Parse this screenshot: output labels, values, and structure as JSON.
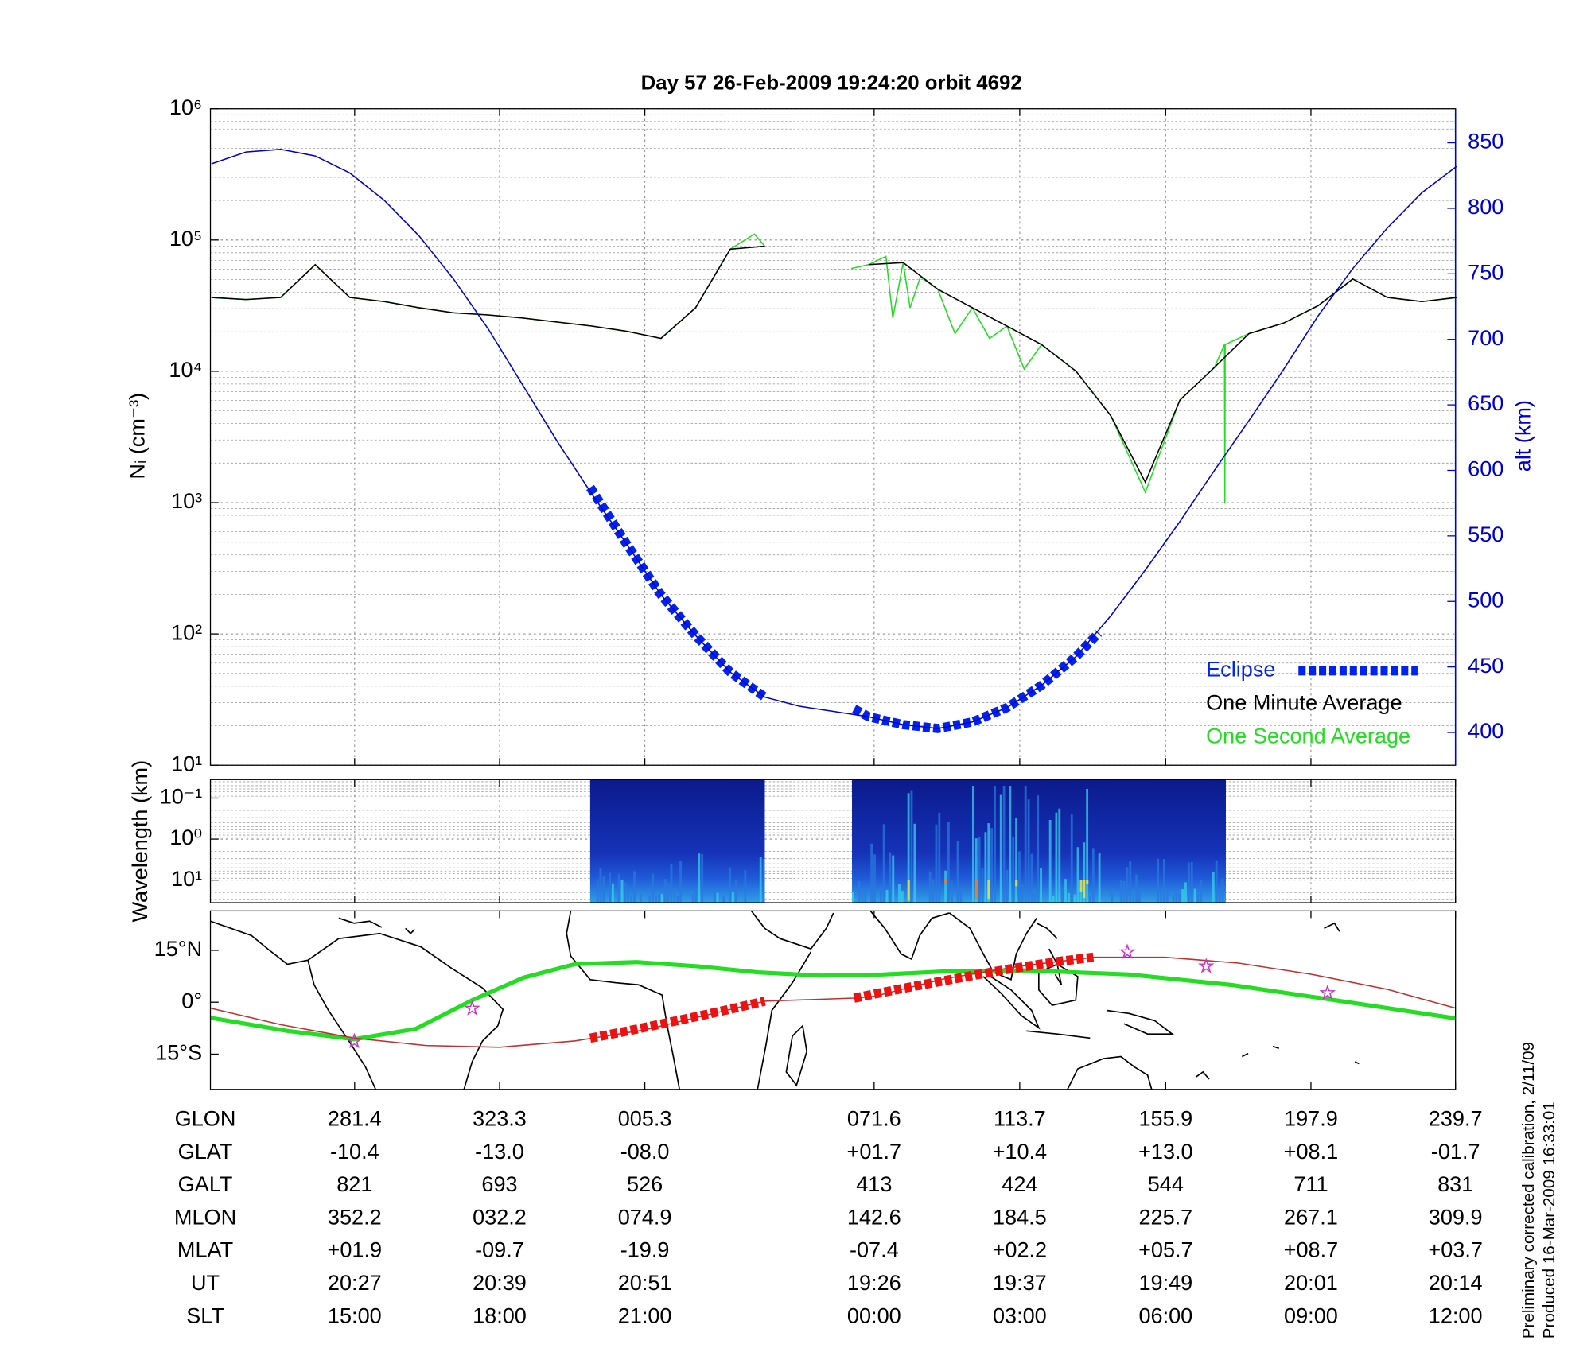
{
  "chart_data": [
    {
      "type": "line",
      "title": "Day 57  26-Feb-2009 19:24:20   orbit 4692",
      "ylabel": "Nᵢ (cm⁻³)",
      "y2label": "alt (km)",
      "log_y": true,
      "grid": true,
      "minor_grid": true,
      "legend": "lower right",
      "xlim": [
        239.7,
        599.7
      ],
      "xticks": [
        281.4,
        323.3,
        365.3,
        431.6,
        473.7,
        515.9,
        557.9,
        599.7
      ],
      "ylim": [
        10,
        1000000
      ],
      "yticks": [
        {
          "value": 10,
          "label": "10¹"
        },
        {
          "value": 100,
          "label": "10²"
        },
        {
          "value": 1000,
          "label": "10³"
        },
        {
          "value": 10000,
          "label": "10⁴"
        },
        {
          "value": 100000,
          "label": "10⁵"
        },
        {
          "value": 1000000,
          "label": "10⁶"
        }
      ],
      "y2lim": [
        375,
        876
      ],
      "y2ticks": [
        400,
        450,
        500,
        550,
        600,
        650,
        700,
        750,
        800,
        850
      ],
      "series": [
        {
          "axis": "y2",
          "color": "#0000cc",
          "style": "thin",
          "x": [
            240,
            250,
            260,
            270,
            280,
            290,
            300,
            310,
            320,
            330,
            340,
            350,
            360,
            370,
            380,
            390,
            400,
            410,
            420,
            430,
            440,
            450,
            460,
            470,
            480,
            490,
            500,
            510,
            520,
            530,
            540,
            550,
            560,
            570,
            580,
            590,
            600
          ],
          "values": [
            834,
            843,
            845,
            840,
            827,
            806,
            779,
            746,
            708,
            665,
            622,
            582,
            544,
            505,
            474,
            446,
            427,
            420,
            416,
            412,
            406,
            403,
            408,
            419,
            436,
            458,
            489,
            524,
            561,
            600,
            638,
            677,
            718,
            754,
            785,
            812,
            832
          ]
        },
        {
          "name": "Eclipse",
          "axis": "y2",
          "color": "#0022ee",
          "style": "thick-dash",
          "x": [
            349.5,
            360,
            370,
            380,
            390,
            400,
            412,
            425.8,
            430,
            440,
            450,
            460,
            470,
            480,
            490,
            496.5
          ],
          "values": [
            587,
            544,
            505,
            474,
            446,
            427,
            null,
            418,
            412,
            406,
            403,
            408,
            419,
            436,
            458,
            476
          ]
        },
        {
          "name": "One Minute Average",
          "color": "#000000",
          "style": "thin",
          "x": [
            240,
            250,
            260,
            270,
            280,
            290,
            300,
            310,
            320,
            330,
            340,
            350,
            360,
            370,
            380,
            390,
            400,
            410,
            420,
            430,
            440,
            450,
            460,
            470,
            480,
            490,
            500,
            510,
            520,
            530,
            540,
            550,
            560,
            570,
            580,
            590,
            600
          ],
          "values": [
            36500,
            35200,
            36500,
            64900,
            36500,
            34000,
            30500,
            27900,
            26900,
            25500,
            23700,
            22100,
            20200,
            17800,
            30500,
            85200,
            89800,
            null,
            null,
            64900,
            67300,
            42200,
            30500,
            22100,
            16000,
            10000,
            4600,
            1430,
            6040,
            10700,
            19400,
            23300,
            31600,
            50500,
            36500,
            34000,
            36500
          ]
        },
        {
          "name": "One Second Average",
          "color": "#22dd22",
          "style": "thin",
          "x": [
            240,
            250,
            260,
            270,
            280,
            290,
            300,
            310,
            320,
            330,
            340,
            350,
            360,
            370,
            380,
            390,
            397,
            400,
            410,
            425,
            430,
            435,
            437,
            440,
            442,
            445,
            450,
            455,
            460,
            465,
            470,
            475,
            480,
            490,
            500,
            510,
            520,
            530,
            532.9,
            533,
            533.1,
            540,
            550,
            560,
            570,
            580,
            590,
            600
          ],
          "values": [
            36500,
            35200,
            36500,
            64900,
            36500,
            34000,
            30500,
            27900,
            26900,
            25500,
            23700,
            22100,
            20200,
            17800,
            30500,
            85200,
            111000,
            89800,
            null,
            60600,
            64900,
            75000,
            25500,
            67300,
            30500,
            52300,
            42200,
            19400,
            30500,
            17800,
            22100,
            10400,
            16000,
            10000,
            4600,
            1200,
            6040,
            10700,
            16000,
            1000,
            16000,
            19400,
            23300,
            31600,
            50500,
            36500,
            34000,
            36500
          ]
        }
      ]
    },
    {
      "type": "heatmap",
      "ylabel": "Wavelength (km)",
      "log_y": true,
      "grid": true,
      "minor_grid": true,
      "xlim": [
        239.7,
        599.7
      ],
      "xticks": [
        281.4,
        323.3,
        365.3,
        431.6,
        473.7,
        515.9,
        557.9,
        599.7
      ],
      "ylim": [
        35.5,
        0.0355
      ],
      "yticks": [
        {
          "value": 0.1,
          "label": "10⁻¹"
        },
        {
          "value": 1,
          "label": "10⁰"
        },
        {
          "value": 10,
          "label": "10¹"
        }
      ],
      "x_ranges": [
        [
          349.5,
          400
        ],
        [
          425.2,
          533.3
        ]
      ]
    },
    {
      "type": "map",
      "xlim": [
        239.7,
        599.7
      ],
      "xticks": [
        281.4,
        323.3,
        365.3,
        431.6,
        473.7,
        515.9,
        557.9,
        599.7
      ],
      "ylim": [
        -25.2,
        26.4
      ],
      "yticks": [
        {
          "value": 15,
          "label": "15°N"
        },
        {
          "value": 0,
          "label": "0°"
        },
        {
          "value": -15,
          "label": "15°S"
        }
      ],
      "series": [
        {
          "color": "#22dd22",
          "style": "thick",
          "x": [
            239.7,
            262.0,
            281.3,
            299.1,
            315.4,
            330.2,
            345.1,
            362.9,
            380.7,
            398.5,
            416.3,
            434.1,
            451.9,
            475.7,
            505.4,
            535.0,
            564.7,
            600.0
          ],
          "values": [
            -4.5,
            -8.3,
            -10.7,
            -7.7,
            0.6,
            7.1,
            11.0,
            11.6,
            10.4,
            8.6,
            7.7,
            8.0,
            8.9,
            9.2,
            8.0,
            5.0,
            0.6,
            -4.7
          ]
        },
        {
          "color": "#c03030",
          "style": "thin",
          "x": [
            239.7,
            260,
            281.4,
            302,
            323.3,
            345,
            365.3,
            400,
            425.8,
            431.6,
            452,
            473.7,
            495,
            515.9,
            537,
            557.9,
            580,
            599.7
          ],
          "values": [
            -1.7,
            -6.5,
            -10.4,
            -12.5,
            -13.0,
            -11.2,
            -8.0,
            0.3,
            1.2,
            1.7,
            6.8,
            10.4,
            13.0,
            13.0,
            11.3,
            8.1,
            3.7,
            -1.7
          ]
        },
        {
          "color": "#ee1111",
          "style": "thick-dash",
          "x": [
            349.5,
            360,
            370,
            380,
            390,
            400,
            412,
            425.8,
            440,
            455,
            470,
            485,
            495
          ],
          "values": [
            -10.4,
            -8.4,
            -6.3,
            -4.2,
            -2.0,
            0.3,
            null,
            1.2,
            4.0,
            6.8,
            9.5,
            11.8,
            13.0
          ]
        }
      ],
      "markers": {
        "color": "#cc33cc",
        "x": [
          281.3,
          315.4,
          504.8,
          527.6,
          562.7
        ],
        "values": [
          -11.3,
          -1.8,
          14.5,
          10.4,
          2.7
        ]
      }
    }
  ],
  "table": {
    "rows": [
      {
        "label": "GLON",
        "cells": [
          "281.4",
          "323.3",
          "005.3",
          "071.6",
          "113.7",
          "155.9",
          "197.9",
          "239.7"
        ]
      },
      {
        "label": "GLAT",
        "cells": [
          "-10.4",
          "-13.0",
          "-08.0",
          "+01.7",
          "+10.4",
          "+13.0",
          "+08.1",
          "-01.7"
        ]
      },
      {
        "label": "GALT",
        "cells": [
          "821",
          "693",
          "526",
          "413",
          "424",
          "544",
          "711",
          "831"
        ]
      },
      {
        "label": "MLON",
        "cells": [
          "352.2",
          "032.2",
          "074.9",
          "142.6",
          "184.5",
          "225.7",
          "267.1",
          "309.9"
        ]
      },
      {
        "label": "MLAT",
        "cells": [
          "+01.9",
          "-09.7",
          "-19.9",
          "-07.4",
          "+02.2",
          "+05.7",
          "+08.7",
          "+03.7"
        ]
      },
      {
        "label": "UT",
        "cells": [
          "20:27",
          "20:39",
          "20:51",
          "19:26",
          "19:37",
          "19:49",
          "20:01",
          "20:14"
        ]
      },
      {
        "label": "SLT",
        "cells": [
          "15:00",
          "18:00",
          "21:00",
          "00:00",
          "03:00",
          "06:00",
          "09:00",
          "12:00"
        ]
      }
    ]
  },
  "notes": [
    "Preliminary corrected calibration, 2/11/09",
    "Produced 16-Mar-2009 16:33:01"
  ]
}
